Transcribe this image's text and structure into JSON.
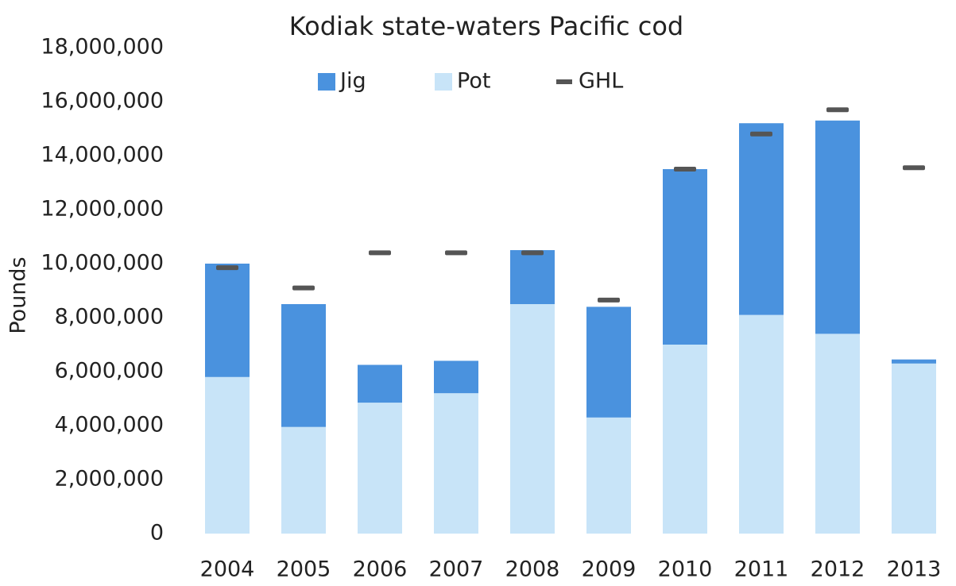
{
  "chart_data": {
    "type": "bar",
    "title": "Kodiak state-waters Pacific cod",
    "ylabel": "Pounds",
    "categories": [
      "2004",
      "2005",
      "2006",
      "2007",
      "2008",
      "2009",
      "2010",
      "2011",
      "2012",
      "2013"
    ],
    "series": [
      {
        "name": "Jig",
        "color": "#4a92de",
        "values": [
          4200000,
          4550000,
          1400000,
          1200000,
          2000000,
          4100000,
          6500000,
          7100000,
          7900000,
          150000
        ]
      },
      {
        "name": "Pot",
        "color": "#c8e4f8",
        "values": [
          5800000,
          3950000,
          4850000,
          5200000,
          8500000,
          4300000,
          7000000,
          8100000,
          7400000,
          6300000
        ]
      },
      {
        "name": "GHL",
        "color": "#555555",
        "marker": "dash",
        "values": [
          9850000,
          9100000,
          10400000,
          10400000,
          10400000,
          8650000,
          13500000,
          14800000,
          15700000,
          13550000
        ]
      }
    ],
    "ylim": [
      0,
      18000000
    ],
    "yticks": [
      0,
      {
        "value": 2000000,
        "label": "2,000,000"
      },
      {
        "value": 4000000,
        "label": "4,000,000"
      },
      {
        "value": 6000000,
        "label": "6,000,000"
      },
      {
        "value": 8000000,
        "label": "8,000,000"
      },
      {
        "value": 10000000,
        "label": "10,000,000"
      },
      {
        "value": 12000000,
        "label": "12,000,000"
      },
      {
        "value": 14000000,
        "label": "14,000,000"
      },
      {
        "value": 16000000,
        "label": "16,000,000"
      },
      {
        "value": 18000000,
        "label": "18,000,000"
      }
    ],
    "grid": false,
    "legend": "top"
  }
}
